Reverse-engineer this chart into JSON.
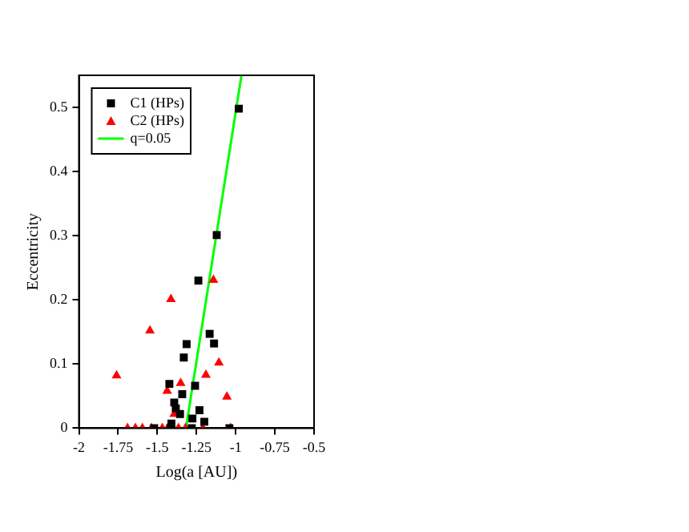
{
  "chart_data": {
    "type": "scatter",
    "xlabel": "Log(a [AU])",
    "ylabel": "Eccentricity",
    "xlim": [
      -2,
      -0.5
    ],
    "xticks": [
      -2,
      -1.75,
      -1.5,
      -1.25,
      -1,
      -0.75,
      -0.5
    ],
    "ylim": [
      0,
      0.55
    ],
    "yticks": [
      0,
      0.1,
      0.2,
      0.3,
      0.4,
      0.5
    ],
    "grid": false,
    "legend": "top left",
    "series": [
      {
        "name": "C1 (HPs)",
        "color": "#000000",
        "marker": "square",
        "x": [
          -0.98,
          -1.121,
          -1.238,
          -1.166,
          -1.138,
          -1.313,
          -1.331,
          -1.423,
          -1.341,
          -1.259,
          -1.392,
          -1.382,
          -1.355,
          -1.231,
          -1.276,
          -1.2,
          -1.41,
          -1.28,
          -1.416,
          -1.52,
          -1.04
        ],
        "values": [
          0.498,
          0.301,
          0.23,
          0.147,
          0.132,
          0.131,
          0.11,
          0.069,
          0.053,
          0.066,
          0.04,
          0.031,
          0.022,
          0.028,
          0.015,
          0.01,
          0.007,
          0,
          0,
          0,
          0
        ]
      },
      {
        "name": "C2 (HPs)",
        "color": "#ff0000",
        "marker": "triangle",
        "x": [
          -1.142,
          -1.413,
          -1.547,
          -1.76,
          -1.107,
          -1.19,
          -1.351,
          -1.437,
          -1.056,
          -1.392,
          -1.69,
          -1.64,
          -1.595,
          -1.537,
          -1.468,
          -1.434,
          -1.365,
          -1.32,
          -1.21,
          -1.032
        ],
        "values": [
          0.231,
          0.201,
          0.152,
          0.082,
          0.102,
          0.083,
          0.07,
          0.058,
          0.049,
          0.022,
          0,
          0,
          0,
          0,
          0,
          0,
          0,
          0,
          0,
          0
        ]
      },
      {
        "name": "q=0.05",
        "type": "line",
        "color": "#00ff00",
        "marker": "none",
        "line_style": "solid",
        "x": [
          -1.317,
          -0.963
        ],
        "values": [
          0,
          0.55
        ]
      }
    ]
  }
}
